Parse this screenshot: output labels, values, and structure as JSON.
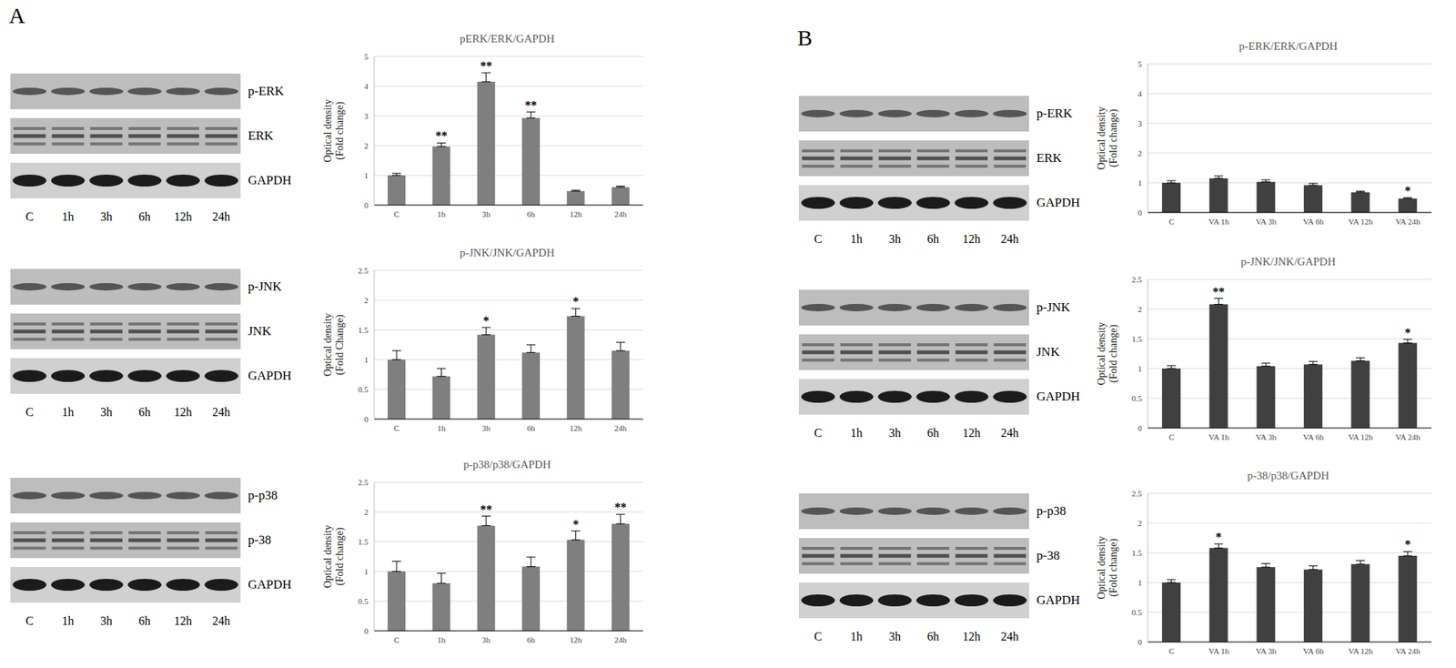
{
  "panel_labels": [
    "A",
    "B"
  ],
  "blots": [
    {
      "rows": [
        "p-ERK",
        "ERK",
        "GAPDH"
      ],
      "lanes": [
        "C",
        "1h",
        "3h",
        "6h",
        "12h",
        "24h"
      ]
    },
    {
      "rows": [
        "p-JNK",
        "JNK",
        "GAPDH"
      ],
      "lanes": [
        "C",
        "1h",
        "3h",
        "6h",
        "12h",
        "24h"
      ]
    },
    {
      "rows": [
        "p-p38",
        "p-38",
        "GAPDH"
      ],
      "lanes": [
        "C",
        "1h",
        "3h",
        "6h",
        "12h",
        "24h"
      ]
    },
    {
      "rows": [
        "p-ERK",
        "ERK",
        "GAPDH"
      ],
      "lanes": [
        "C",
        "1h",
        "3h",
        "6h",
        "12h",
        "24h"
      ]
    },
    {
      "rows": [
        "p-JNK",
        "JNK",
        "GAPDH"
      ],
      "lanes": [
        "C",
        "1h",
        "3h",
        "6h",
        "12h",
        "24h"
      ]
    },
    {
      "rows": [
        "p-p38",
        "p-38",
        "GAPDH"
      ],
      "lanes": [
        "C",
        "1h",
        "3h",
        "6h",
        "12h",
        "24h"
      ]
    }
  ],
  "chart_data": [
    {
      "type": "bar",
      "title": "pERK/ERK/GAPDH",
      "y_label": [
        "Optical density",
        "(Fold change)"
      ],
      "categories": [
        "C",
        "1h",
        "3h",
        "6h",
        "12h",
        "24h"
      ],
      "values": [
        1.0,
        1.97,
        4.15,
        2.93,
        0.47,
        0.6
      ],
      "errors": [
        0.07,
        0.12,
        0.3,
        0.2,
        0.03,
        0.04
      ],
      "annotations": [
        null,
        "**",
        "**",
        "**",
        null,
        null
      ],
      "ylim": [
        0,
        5
      ],
      "yticks": [
        0,
        1,
        2,
        3,
        4,
        5
      ],
      "grid": true,
      "color": "#7f7f7f"
    },
    {
      "type": "bar",
      "title": "p-JNK/JNK/GAPDH",
      "y_label": [
        "Optical density",
        "(Fold Change)"
      ],
      "categories": [
        "C",
        "1h",
        "3h",
        "6h",
        "12h",
        "24h"
      ],
      "values": [
        1.0,
        0.72,
        1.42,
        1.12,
        1.73,
        1.15
      ],
      "errors": [
        0.15,
        0.13,
        0.12,
        0.13,
        0.13,
        0.14
      ],
      "annotations": [
        null,
        null,
        "*",
        null,
        "*",
        null
      ],
      "ylim": [
        0,
        2.5
      ],
      "yticks": [
        0,
        0.5,
        1,
        1.5,
        2,
        2.5
      ],
      "grid": true,
      "color": "#7f7f7f"
    },
    {
      "type": "bar",
      "title": "p-p38/p38/GAPDH",
      "y_label": [
        "Optical density",
        "(Fold change)"
      ],
      "categories": [
        "C",
        "1h",
        "3h",
        "6h",
        "12h",
        "24h"
      ],
      "values": [
        1.0,
        0.8,
        1.77,
        1.08,
        1.53,
        1.8
      ],
      "errors": [
        0.17,
        0.17,
        0.16,
        0.16,
        0.15,
        0.16
      ],
      "annotations": [
        null,
        null,
        "**",
        null,
        "*",
        "**"
      ],
      "ylim": [
        0,
        2.5
      ],
      "yticks": [
        0,
        0.5,
        1,
        1.5,
        2,
        2.5
      ],
      "grid": true,
      "color": "#7f7f7f"
    },
    {
      "type": "bar",
      "title": "p-ERK/ERK/GAPDH",
      "y_label": [
        "Optical density",
        "(Fold change)"
      ],
      "categories": [
        "C",
        "VA 1h",
        "VA 3h",
        "VA 6h",
        "VA 12h",
        "VA 24h"
      ],
      "values": [
        1.0,
        1.15,
        1.03,
        0.92,
        0.68,
        0.47
      ],
      "errors": [
        0.07,
        0.08,
        0.07,
        0.06,
        0.04,
        0.03
      ],
      "annotations": [
        null,
        null,
        null,
        null,
        null,
        "*"
      ],
      "ylim": [
        0,
        5
      ],
      "yticks": [
        0,
        1,
        2,
        3,
        4,
        5
      ],
      "grid": true,
      "color": "#404040"
    },
    {
      "type": "bar",
      "title": "p-JNK/JNK/GAPDH",
      "y_label": [
        "Optical density",
        "(Fold change)"
      ],
      "categories": [
        "C",
        "VA 1h",
        "VA 3h",
        "VA 6h",
        "VA 12h",
        "VA 24h"
      ],
      "values": [
        1.0,
        2.08,
        1.04,
        1.07,
        1.13,
        1.43
      ],
      "errors": [
        0.05,
        0.1,
        0.05,
        0.05,
        0.05,
        0.06
      ],
      "annotations": [
        null,
        "**",
        null,
        null,
        null,
        "*"
      ],
      "ylim": [
        0,
        2.5
      ],
      "yticks": [
        0,
        0.5,
        1,
        1.5,
        2,
        2.5
      ],
      "grid": true,
      "color": "#404040"
    },
    {
      "type": "bar",
      "title": "p-38/p38/GAPDH",
      "y_label": [
        "Optical density",
        "(Fold change)"
      ],
      "categories": [
        "C",
        "VA 1h",
        "VA 3h",
        "VA 6h",
        "VA 12h",
        "VA 24h"
      ],
      "values": [
        1.0,
        1.58,
        1.26,
        1.22,
        1.31,
        1.45
      ],
      "errors": [
        0.05,
        0.07,
        0.06,
        0.06,
        0.06,
        0.07
      ],
      "annotations": [
        null,
        "*",
        null,
        null,
        null,
        "*"
      ],
      "ylim": [
        0,
        2.5
      ],
      "yticks": [
        0,
        0.5,
        1,
        1.5,
        2,
        2.5
      ],
      "grid": true,
      "color": "#404040"
    }
  ]
}
